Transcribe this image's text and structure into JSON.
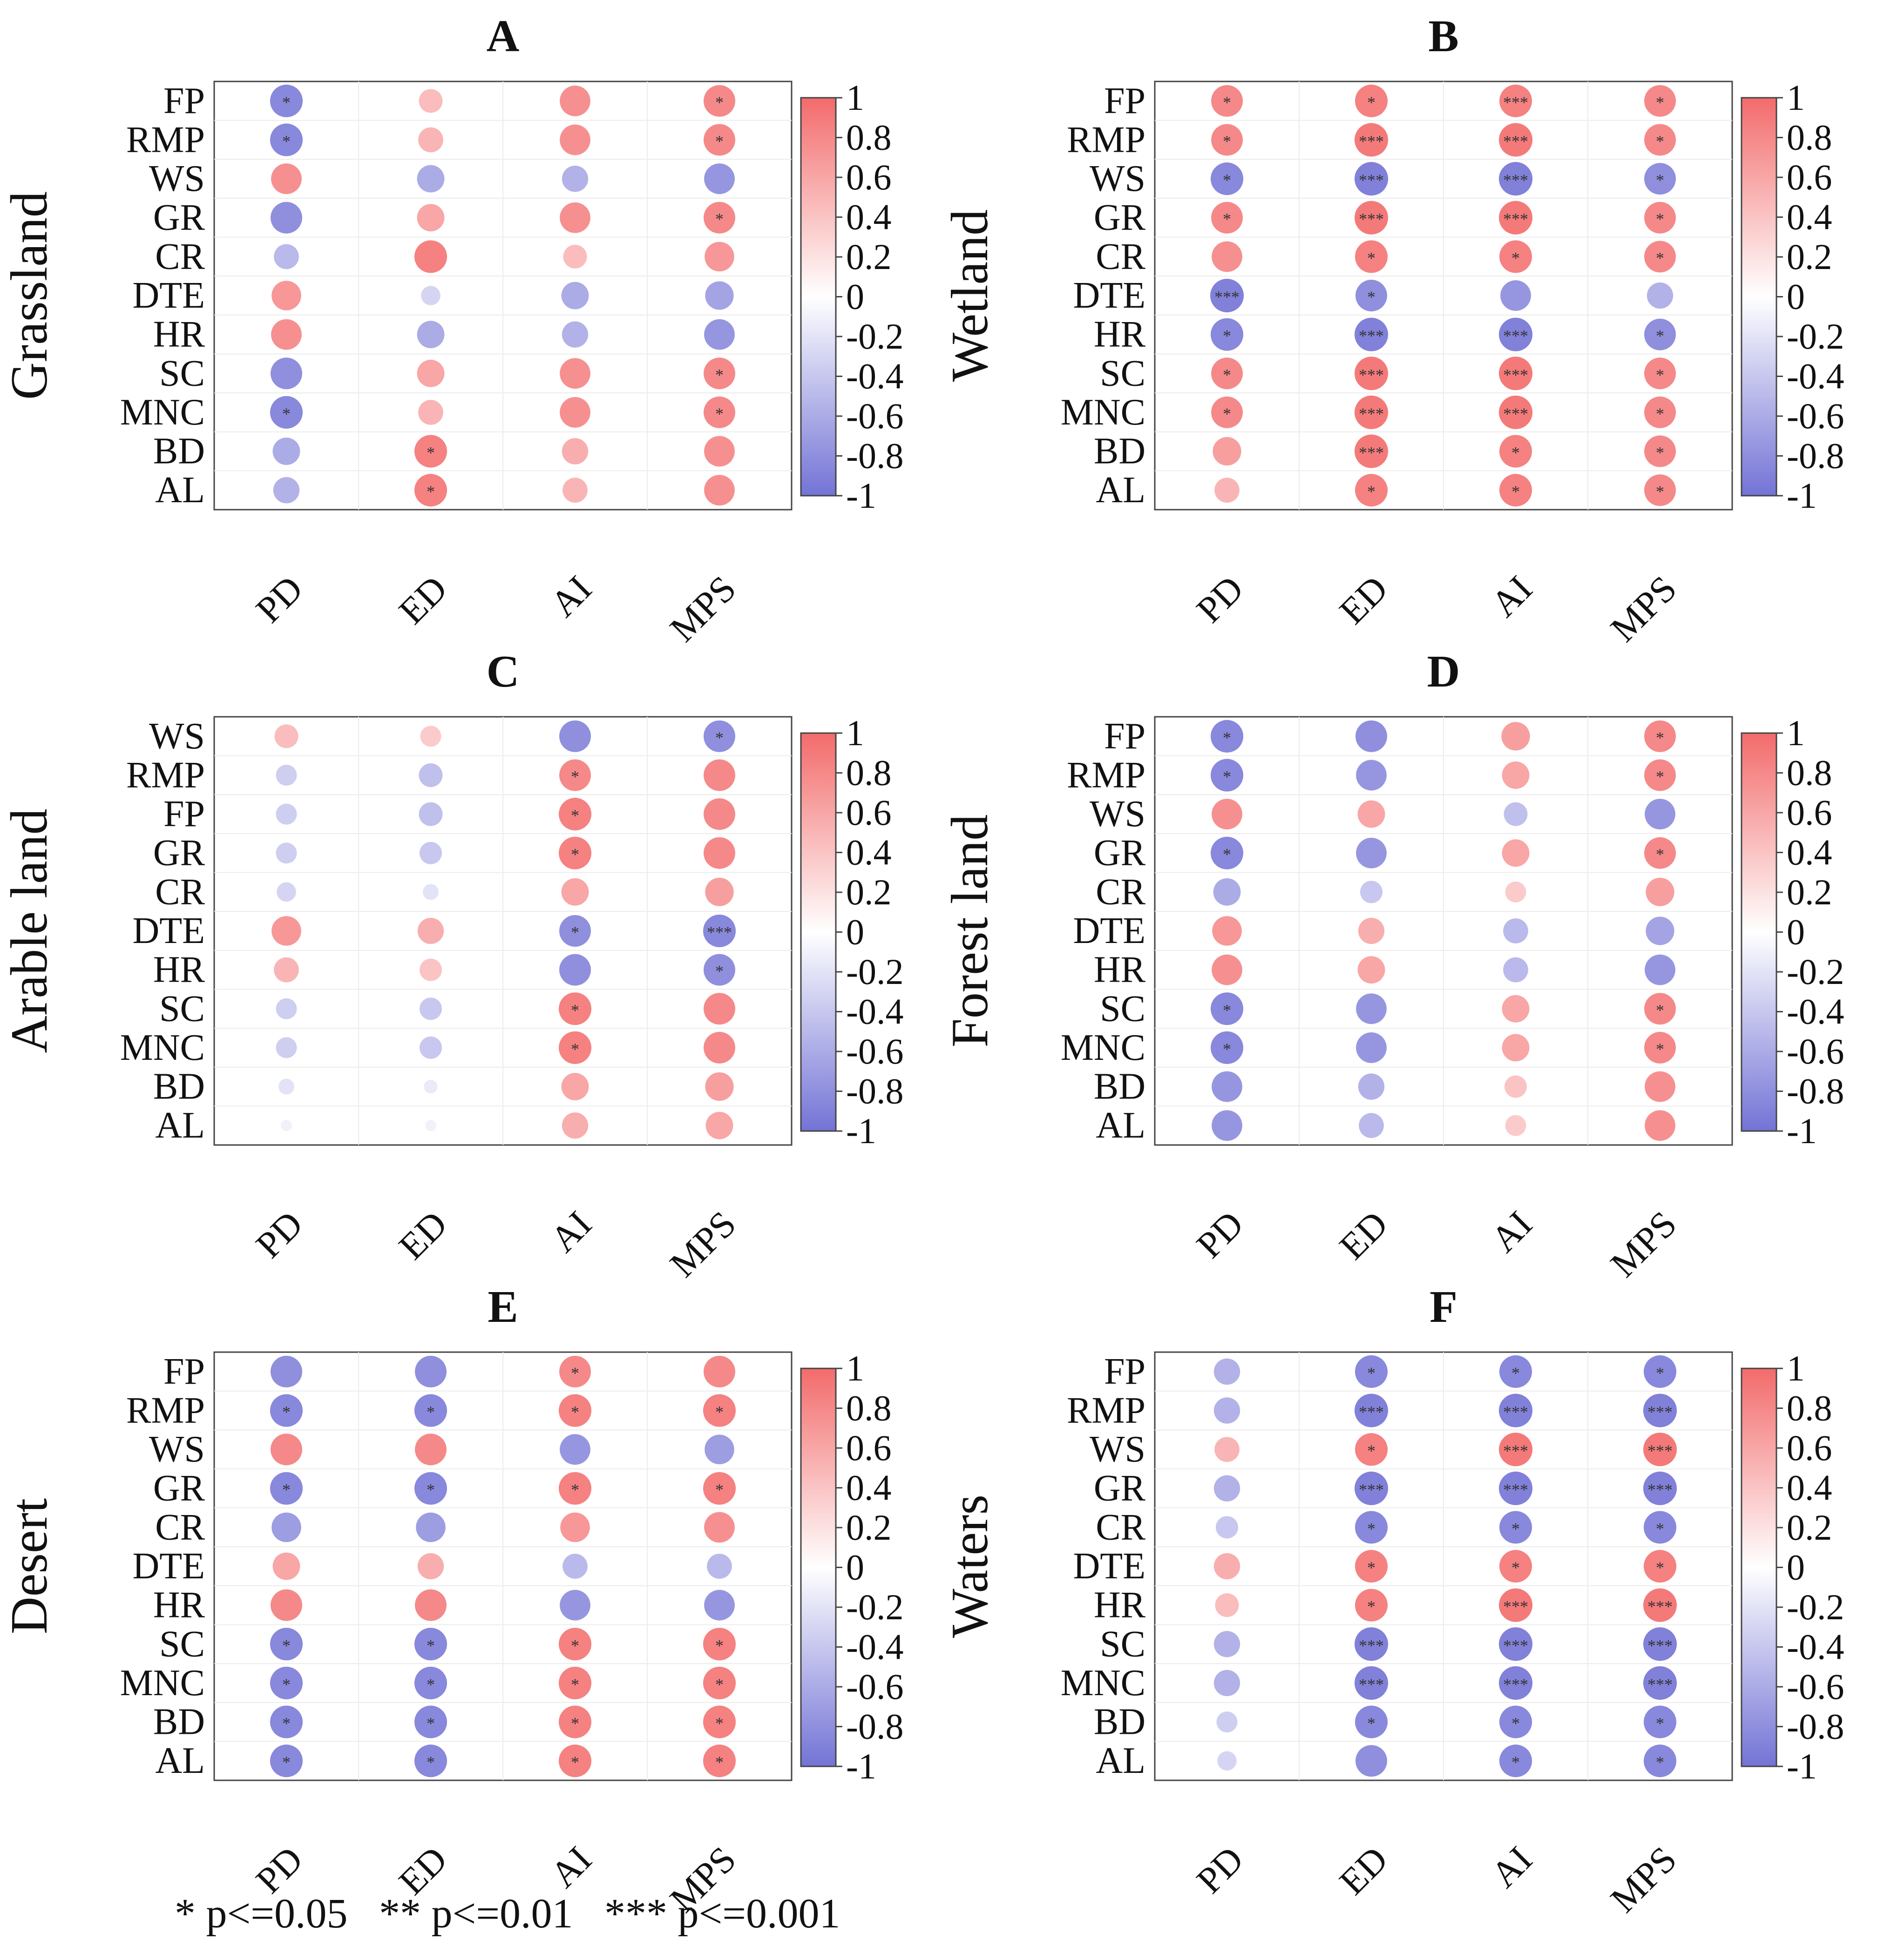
{
  "row_labels_default": [
    "FP",
    "RMP",
    "WS",
    "GR",
    "CR",
    "DTE",
    "HR",
    "SC",
    "MNC",
    "BD",
    "AL"
  ],
  "columns": [
    "PD",
    "ED",
    "AI",
    "MPS"
  ],
  "colorbar": {
    "ticks": [
      "1",
      "0.8",
      "0.6",
      "0.4",
      "0.2",
      "0",
      "-0.2",
      "-0.4",
      "-0.6",
      "-0.8",
      "-1"
    ],
    "colors": {
      "positive": "#f36b6b",
      "zero": "#ffffff",
      "negative": "#7373d6"
    }
  },
  "footnote": "* p<=0.05   ** p<=0.01   *** p<=0.001",
  "chart_data": [
    {
      "type": "heatmap",
      "title": "A",
      "ylabel": "Grassland",
      "rows": [
        "FP",
        "RMP",
        "WS",
        "GR",
        "CR",
        "DTE",
        "HR",
        "SC",
        "MNC",
        "BD",
        "AL"
      ],
      "columns": [
        "PD",
        "ED",
        "AI",
        "MPS"
      ],
      "values": [
        [
          -0.85,
          0.45,
          0.75,
          0.8
        ],
        [
          -0.85,
          0.5,
          0.75,
          0.8
        ],
        [
          0.75,
          -0.6,
          -0.55,
          -0.75
        ],
        [
          -0.8,
          0.6,
          0.75,
          0.8
        ],
        [
          -0.5,
          0.85,
          0.45,
          0.7
        ],
        [
          0.7,
          -0.3,
          -0.6,
          -0.65
        ],
        [
          0.75,
          -0.6,
          -0.55,
          -0.75
        ],
        [
          -0.8,
          0.6,
          0.75,
          0.8
        ],
        [
          -0.85,
          0.5,
          0.75,
          0.8
        ],
        [
          -0.6,
          0.85,
          0.55,
          0.75
        ],
        [
          -0.55,
          0.85,
          0.5,
          0.75
        ]
      ],
      "significance": [
        [
          "*",
          "",
          "",
          "*"
        ],
        [
          "*",
          "",
          "",
          "*"
        ],
        [
          "",
          "",
          "",
          ""
        ],
        [
          "",
          "",
          "",
          "*"
        ],
        [
          "",
          "",
          "",
          ""
        ],
        [
          "",
          "",
          "",
          ""
        ],
        [
          "",
          "",
          "",
          ""
        ],
        [
          "",
          "",
          "",
          "*"
        ],
        [
          "*",
          "",
          "",
          "*"
        ],
        [
          "",
          "*",
          "",
          ""
        ],
        [
          "",
          "*",
          "",
          ""
        ]
      ]
    },
    {
      "type": "heatmap",
      "title": "B",
      "ylabel": "Wetland",
      "rows": [
        "FP",
        "RMP",
        "WS",
        "GR",
        "CR",
        "DTE",
        "HR",
        "SC",
        "MNC",
        "BD",
        "AL"
      ],
      "columns": [
        "PD",
        "ED",
        "AI",
        "MPS"
      ],
      "values": [
        [
          0.8,
          0.85,
          0.85,
          0.8
        ],
        [
          0.8,
          0.9,
          0.9,
          0.8
        ],
        [
          -0.85,
          -0.9,
          -0.9,
          -0.8
        ],
        [
          0.8,
          0.9,
          0.9,
          0.8
        ],
        [
          0.75,
          0.85,
          0.85,
          0.8
        ],
        [
          -0.9,
          -0.8,
          -0.75,
          -0.55
        ],
        [
          -0.85,
          -0.9,
          -0.9,
          -0.8
        ],
        [
          0.8,
          0.9,
          0.9,
          0.8
        ],
        [
          0.8,
          0.9,
          0.9,
          0.8
        ],
        [
          0.65,
          0.9,
          0.85,
          0.8
        ],
        [
          0.5,
          0.85,
          0.85,
          0.8
        ]
      ],
      "significance": [
        [
          "*",
          "*",
          "***",
          "*"
        ],
        [
          "*",
          "***",
          "***",
          "*"
        ],
        [
          "*",
          "***",
          "***",
          "*"
        ],
        [
          "*",
          "***",
          "***",
          "*"
        ],
        [
          "",
          "*",
          "*",
          "*"
        ],
        [
          "***",
          "*",
          "",
          ""
        ],
        [
          "*",
          "***",
          "***",
          "*"
        ],
        [
          "*",
          "***",
          "***",
          "*"
        ],
        [
          "*",
          "***",
          "***",
          "*"
        ],
        [
          "",
          "***",
          "*",
          "*"
        ],
        [
          "",
          "*",
          "*",
          "*"
        ]
      ]
    },
    {
      "type": "heatmap",
      "title": "C",
      "ylabel": "Arable land",
      "rows": [
        "WS",
        "RMP",
        "FP",
        "GR",
        "CR",
        "DTE",
        "HR",
        "SC",
        "MNC",
        "BD",
        "AL"
      ],
      "columns": [
        "PD",
        "ED",
        "AI",
        "MPS"
      ],
      "values": [
        [
          0.45,
          0.35,
          -0.8,
          -0.8
        ],
        [
          -0.35,
          -0.45,
          0.8,
          0.8
        ],
        [
          -0.35,
          -0.45,
          0.85,
          0.8
        ],
        [
          -0.35,
          -0.4,
          0.85,
          0.8
        ],
        [
          -0.3,
          -0.2,
          0.6,
          0.65
        ],
        [
          0.7,
          0.55,
          -0.8,
          -0.85
        ],
        [
          0.5,
          0.4,
          -0.8,
          -0.8
        ],
        [
          -0.35,
          -0.4,
          0.85,
          0.8
        ],
        [
          -0.35,
          -0.4,
          0.85,
          0.8
        ],
        [
          -0.2,
          -0.15,
          0.6,
          0.65
        ],
        [
          -0.1,
          -0.1,
          0.55,
          0.6
        ]
      ],
      "significance": [
        [
          "",
          "",
          "",
          "*"
        ],
        [
          "",
          "",
          "*",
          ""
        ],
        [
          "",
          "",
          "*",
          ""
        ],
        [
          "",
          "",
          "*",
          ""
        ],
        [
          "",
          "",
          "",
          ""
        ],
        [
          "",
          "",
          "*",
          "***"
        ],
        [
          "",
          "",
          "",
          "*"
        ],
        [
          "",
          "",
          "*",
          ""
        ],
        [
          "",
          "",
          "*",
          ""
        ],
        [
          "",
          "",
          "",
          ""
        ],
        [
          "",
          "",
          "",
          ""
        ]
      ]
    },
    {
      "type": "heatmap",
      "title": "D",
      "ylabel": "Forest land",
      "rows": [
        "FP",
        "RMP",
        "WS",
        "GR",
        "CR",
        "DTE",
        "HR",
        "SC",
        "MNC",
        "BD",
        "AL"
      ],
      "columns": [
        "PD",
        "ED",
        "AI",
        "MPS"
      ],
      "values": [
        [
          -0.85,
          -0.8,
          0.65,
          0.8
        ],
        [
          -0.85,
          -0.75,
          0.6,
          0.8
        ],
        [
          0.75,
          0.6,
          -0.45,
          -0.75
        ],
        [
          -0.85,
          -0.75,
          0.6,
          0.8
        ],
        [
          -0.6,
          -0.4,
          0.35,
          0.65
        ],
        [
          0.7,
          0.55,
          -0.5,
          -0.65
        ],
        [
          0.75,
          0.6,
          -0.5,
          -0.75
        ],
        [
          -0.85,
          -0.75,
          0.6,
          0.8
        ],
        [
          -0.85,
          -0.75,
          0.6,
          0.8
        ],
        [
          -0.75,
          -0.55,
          0.4,
          0.75
        ],
        [
          -0.75,
          -0.5,
          0.35,
          0.75
        ]
      ],
      "significance": [
        [
          "*",
          "",
          "",
          "*"
        ],
        [
          "*",
          "",
          "",
          "*"
        ],
        [
          "",
          "",
          "",
          ""
        ],
        [
          "*",
          "",
          "",
          "*"
        ],
        [
          "",
          "",
          "",
          ""
        ],
        [
          "",
          "",
          "",
          ""
        ],
        [
          "",
          "",
          "",
          ""
        ],
        [
          "*",
          "",
          "",
          "*"
        ],
        [
          "*",
          "",
          "",
          "*"
        ],
        [
          "",
          "",
          "",
          ""
        ],
        [
          "",
          "",
          "",
          ""
        ]
      ]
    },
    {
      "type": "heatmap",
      "title": "E",
      "ylabel": "Desert",
      "rows": [
        "FP",
        "RMP",
        "WS",
        "GR",
        "CR",
        "DTE",
        "HR",
        "SC",
        "MNC",
        "BD",
        "AL"
      ],
      "columns": [
        "PD",
        "ED",
        "AI",
        "MPS"
      ],
      "values": [
        [
          -0.8,
          -0.8,
          0.8,
          0.8
        ],
        [
          -0.85,
          -0.85,
          0.85,
          0.85
        ],
        [
          0.8,
          0.8,
          -0.75,
          -0.7
        ],
        [
          -0.85,
          -0.85,
          0.85,
          0.85
        ],
        [
          -0.7,
          -0.7,
          0.7,
          0.75
        ],
        [
          0.6,
          0.55,
          -0.5,
          -0.5
        ],
        [
          0.8,
          0.8,
          -0.75,
          -0.75
        ],
        [
          -0.85,
          -0.85,
          0.85,
          0.85
        ],
        [
          -0.85,
          -0.85,
          0.85,
          0.85
        ],
        [
          -0.85,
          -0.85,
          0.85,
          0.85
        ],
        [
          -0.85,
          -0.85,
          0.85,
          0.85
        ]
      ],
      "significance": [
        [
          "",
          "",
          "*",
          ""
        ],
        [
          "*",
          "*",
          "*",
          "*"
        ],
        [
          "",
          "",
          "",
          ""
        ],
        [
          "*",
          "*",
          "*",
          "*"
        ],
        [
          "",
          "",
          "",
          ""
        ],
        [
          "",
          "",
          "",
          ""
        ],
        [
          "",
          "",
          "",
          ""
        ],
        [
          "*",
          "*",
          "*",
          "*"
        ],
        [
          "*",
          "*",
          "*",
          "*"
        ],
        [
          "*",
          "*",
          "*",
          "*"
        ],
        [
          "*",
          "*",
          "*",
          "*"
        ]
      ]
    },
    {
      "type": "heatmap",
      "title": "F",
      "ylabel": "Waters",
      "rows": [
        "FP",
        "RMP",
        "WS",
        "GR",
        "CR",
        "DTE",
        "HR",
        "SC",
        "MNC",
        "BD",
        "AL"
      ],
      "columns": [
        "PD",
        "ED",
        "AI",
        "MPS"
      ],
      "values": [
        [
          -0.55,
          -0.85,
          -0.85,
          -0.85
        ],
        [
          -0.55,
          -0.9,
          -0.9,
          -0.9
        ],
        [
          0.5,
          0.85,
          0.9,
          0.9
        ],
        [
          -0.55,
          -0.9,
          -0.9,
          -0.9
        ],
        [
          -0.4,
          -0.85,
          -0.85,
          -0.85
        ],
        [
          0.55,
          0.85,
          0.85,
          0.85
        ],
        [
          0.45,
          0.85,
          0.9,
          0.9
        ],
        [
          -0.55,
          -0.9,
          -0.9,
          -0.9
        ],
        [
          -0.55,
          -0.9,
          -0.9,
          -0.9
        ],
        [
          -0.35,
          -0.85,
          -0.85,
          -0.85
        ],
        [
          -0.3,
          -0.8,
          -0.85,
          -0.85
        ]
      ],
      "significance": [
        [
          "",
          "*",
          "*",
          "*"
        ],
        [
          "",
          "***",
          "***",
          "***"
        ],
        [
          "",
          "*",
          "***",
          "***"
        ],
        [
          "",
          "***",
          "***",
          "***"
        ],
        [
          "",
          "*",
          "*",
          "*"
        ],
        [
          "",
          "*",
          "*",
          "*"
        ],
        [
          "",
          "*",
          "***",
          "***"
        ],
        [
          "",
          "***",
          "***",
          "***"
        ],
        [
          "",
          "***",
          "***",
          "***"
        ],
        [
          "",
          "*",
          "*",
          "*"
        ],
        [
          "",
          "",
          "*",
          "*"
        ]
      ]
    }
  ]
}
